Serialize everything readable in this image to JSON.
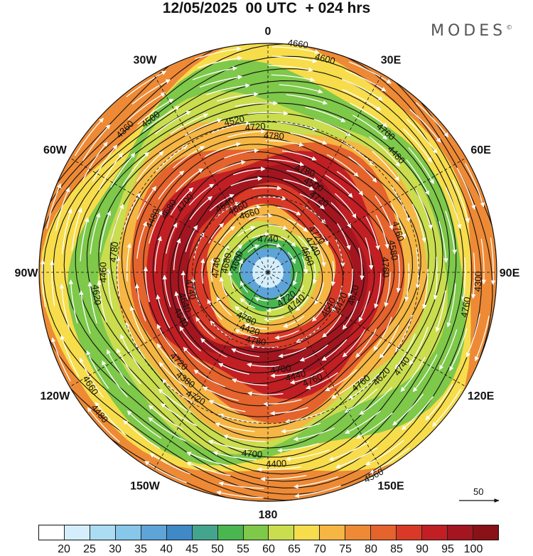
{
  "title": "12/05/2025  00 UTC  + 024 hrs",
  "brand": "MODES",
  "brand_mark": "©",
  "longitude_labels": [
    {
      "name": "lon-0",
      "text": "0",
      "angle": 0
    },
    {
      "name": "lon-30e",
      "text": "30E",
      "angle": 30
    },
    {
      "name": "lon-60e",
      "text": "60E",
      "angle": 60
    },
    {
      "name": "lon-90e",
      "text": "90E",
      "angle": 90
    },
    {
      "name": "lon-120e",
      "text": "120E",
      "angle": 120
    },
    {
      "name": "lon-150e",
      "text": "150E",
      "angle": 150
    },
    {
      "name": "lon-180",
      "text": "180",
      "angle": 180
    },
    {
      "name": "lon-150w",
      "text": "150W",
      "angle": 210
    },
    {
      "name": "lon-120w",
      "text": "120W",
      "angle": 240
    },
    {
      "name": "lon-90w",
      "text": "90W",
      "angle": 270
    },
    {
      "name": "lon-60w",
      "text": "60W",
      "angle": 300
    },
    {
      "name": "lon-30w",
      "text": "30W",
      "angle": 330
    }
  ],
  "contour_labels": [
    "4740",
    "4740",
    "4740",
    "4720",
    "4780",
    "4640",
    "4620",
    "4540",
    "4780",
    "4760",
    "4480",
    "4760",
    "4720",
    "4520",
    "4740",
    "4620",
    "4700",
    "4400",
    "4360",
    "4300",
    "4480",
    "4660",
    "4720",
    "4680",
    "4740",
    "4420",
    "4660",
    "4420",
    "4640",
    "4500",
    "4440",
    "4680",
    "4580",
    "4380",
    "4720",
    "4620",
    "4460",
    "4480",
    "4700",
    "4500",
    "4760",
    "4660",
    "4600",
    "4560",
    "4600",
    "4660",
    "4780",
    "4660",
    "4640",
    "4740",
    "4720",
    "4700",
    "4700",
    "4760",
    "4720",
    "4780",
    "4760",
    "4780"
  ],
  "colorbar": {
    "labels": [
      "20",
      "25",
      "30",
      "35",
      "40",
      "45",
      "50",
      "55",
      "60",
      "65",
      "70",
      "75",
      "80",
      "85",
      "90",
      "95",
      "100"
    ],
    "colors": [
      "#ffffff",
      "#d4eefb",
      "#aadcf4",
      "#86c7ea",
      "#5ea4d8",
      "#3f89c7",
      "#44a58e",
      "#4ab650",
      "#7ec84a",
      "#c9dd4e",
      "#f7dd4c",
      "#f5b643",
      "#ee8a35",
      "#e5632c",
      "#d93a27",
      "#c11f24",
      "#a31620",
      "#8a1118"
    ]
  },
  "vector_reference": {
    "value": "50"
  },
  "wind_field": {
    "center_value": 20,
    "rings": [
      {
        "r_frac": 0.06,
        "speed": 25
      },
      {
        "r_frac": 0.11,
        "speed": 35
      },
      {
        "r_frac": 0.16,
        "speed": 50
      },
      {
        "r_frac": 0.22,
        "speed": 60
      },
      {
        "r_frac": 0.28,
        "speed": 70
      },
      {
        "r_frac": 0.36,
        "speed": 85
      },
      {
        "r_frac": 0.44,
        "speed": 95
      },
      {
        "r_frac": 0.52,
        "speed": 90
      },
      {
        "r_frac": 0.6,
        "speed": 80
      },
      {
        "r_frac": 0.68,
        "speed": 70
      },
      {
        "r_frac": 0.76,
        "speed": 60
      },
      {
        "r_frac": 0.86,
        "speed": 55
      },
      {
        "r_frac": 0.94,
        "speed": 65
      },
      {
        "r_frac": 1.0,
        "speed": 75
      }
    ]
  }
}
